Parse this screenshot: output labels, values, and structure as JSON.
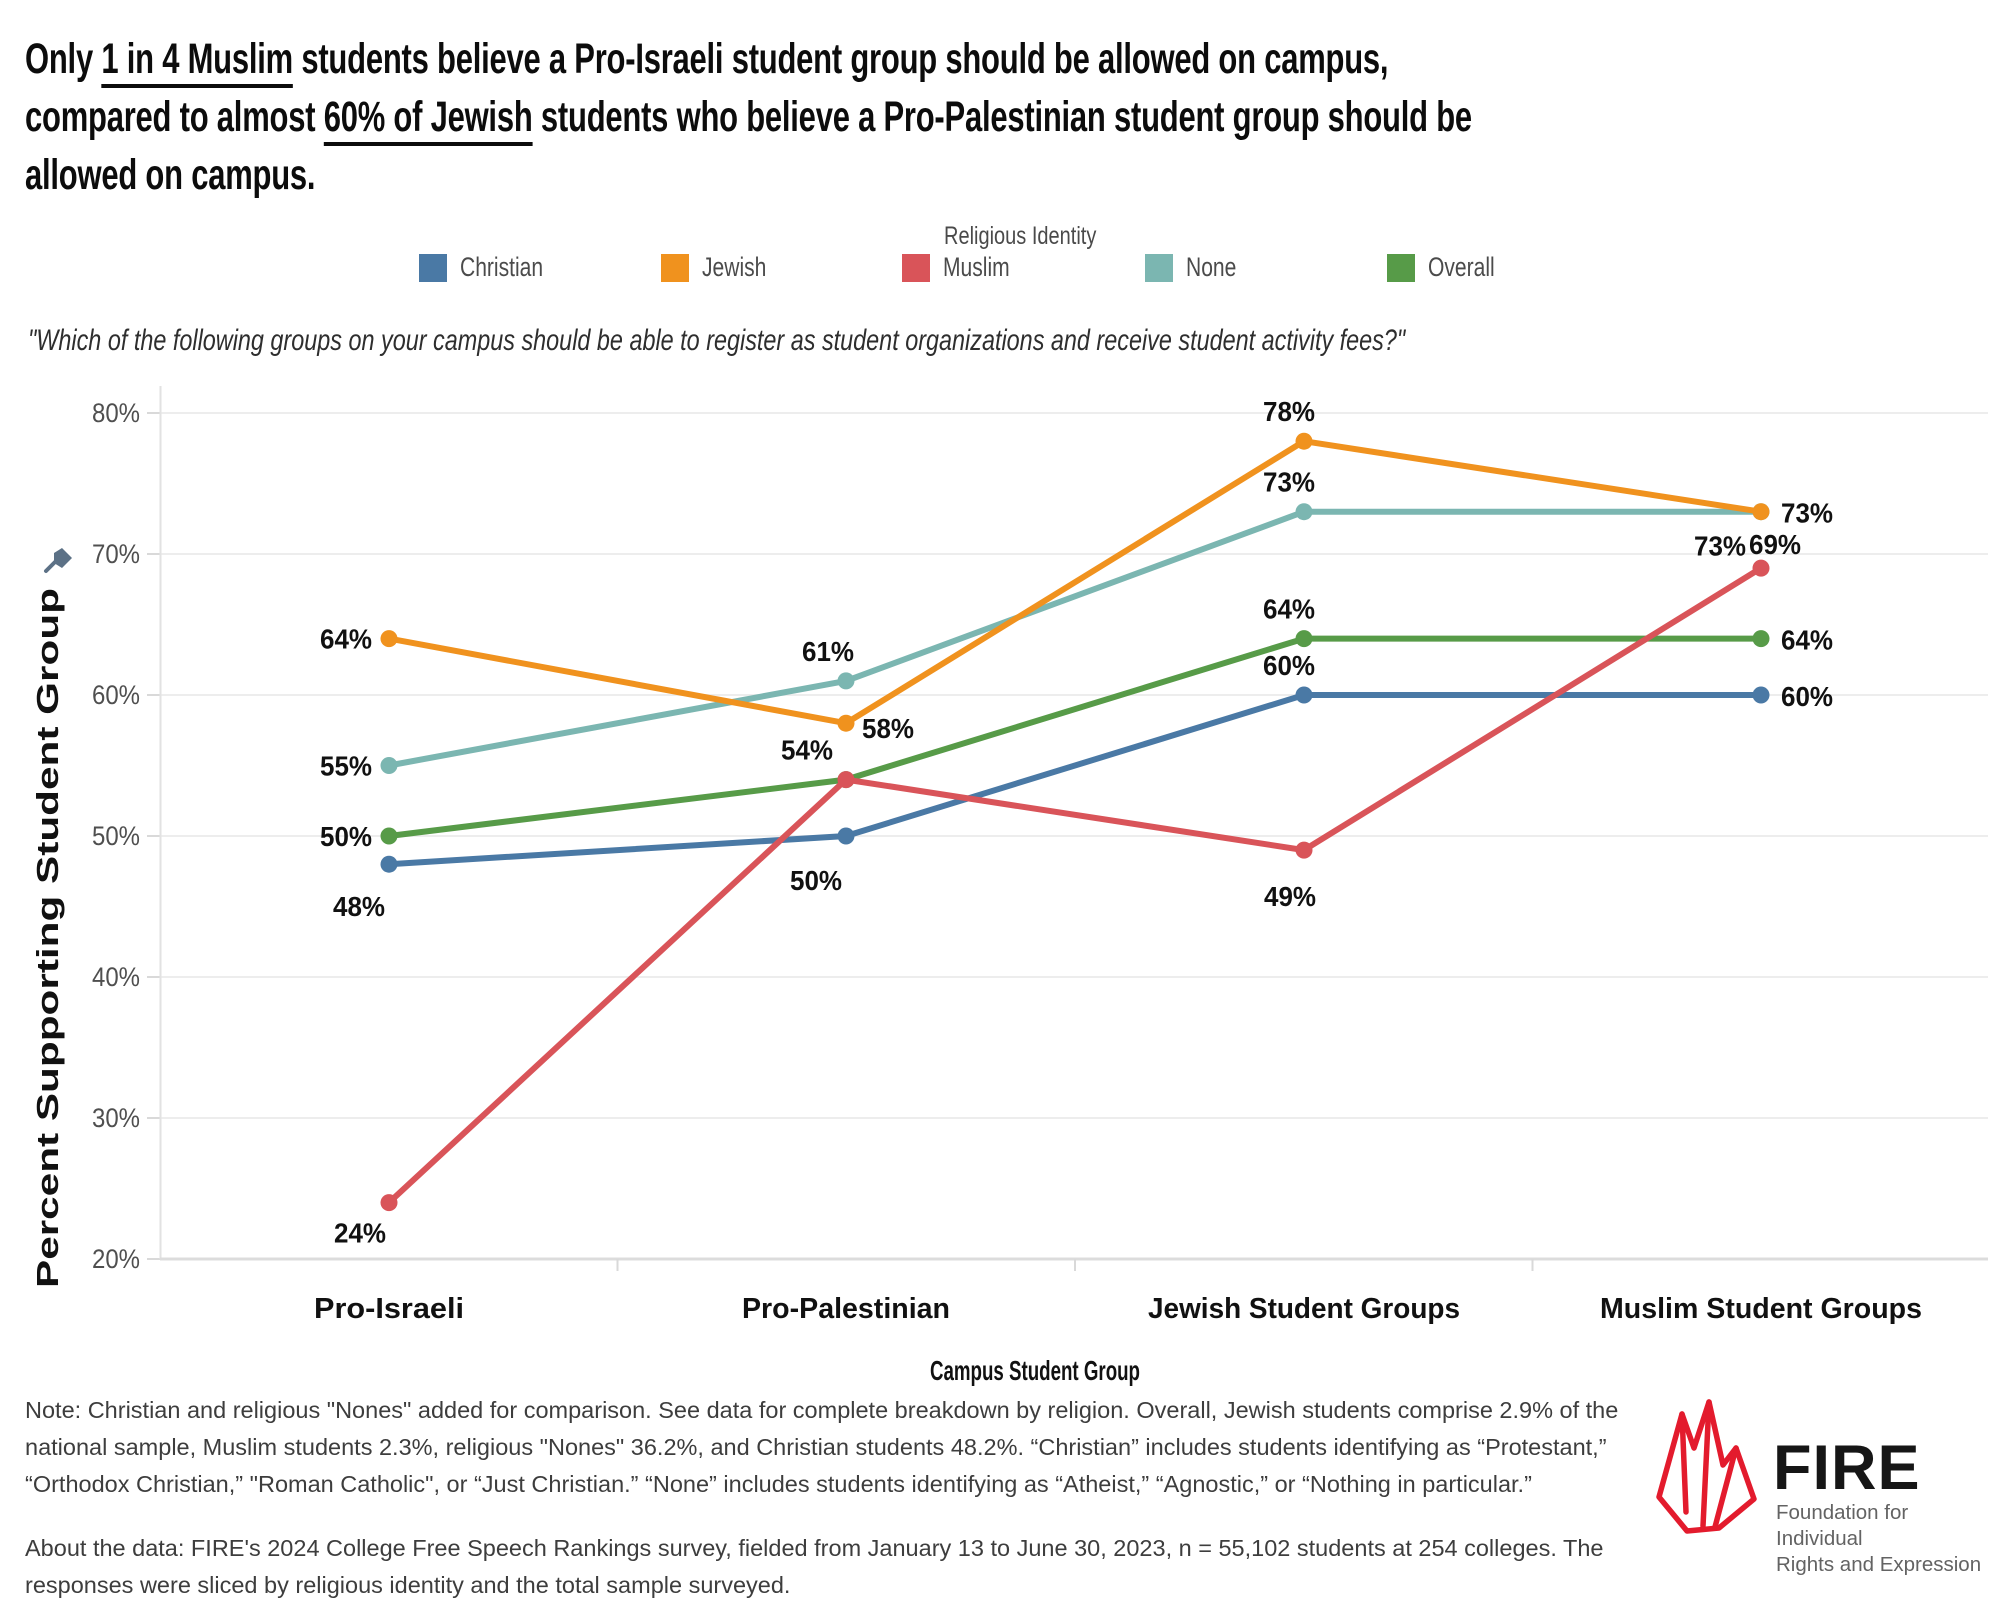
{
  "header": {
    "title_lines": [
      [
        {
          "text": "Only ",
          "underline": false
        },
        {
          "text": "1 in 4 Muslim",
          "underline": true
        },
        {
          "text": " students believe a Pro-Israeli student group should be allowed on campus,",
          "underline": false
        }
      ],
      [
        {
          "text": "compared to almost ",
          "underline": false
        },
        {
          "text": "60% of Jewish",
          "underline": true
        },
        {
          "text": " students who believe a Pro-Palestinian student group should be",
          "underline": false
        }
      ],
      [
        {
          "text": "allowed on campus.",
          "underline": false
        }
      ]
    ]
  },
  "legend": {
    "title": "Religious Identity",
    "items": [
      {
        "label": "Christian",
        "color": "#4a79a5"
      },
      {
        "label": "Jewish",
        "color": "#f0921e"
      },
      {
        "label": "Muslim",
        "color": "#d95459"
      },
      {
        "label": "None",
        "color": "#7bb6b1"
      },
      {
        "label": "Overall",
        "color": "#579b48"
      }
    ]
  },
  "survey_question": "\"Which of the following groups on your campus should be able to register as student organizations and receive student activity fees?\"",
  "chart_data": {
    "type": "line",
    "categories": [
      "Pro-Israeli",
      "Pro-Palestinian",
      "Jewish Student Groups",
      "Muslim Student Groups"
    ],
    "series": [
      {
        "name": "Christian",
        "color": "#4a79a5",
        "values": [
          48,
          50,
          60,
          60
        ]
      },
      {
        "name": "Jewish",
        "color": "#f0921e",
        "values": [
          64,
          58,
          78,
          73
        ]
      },
      {
        "name": "Muslim",
        "color": "#d95459",
        "values": [
          24,
          54,
          49,
          69
        ]
      },
      {
        "name": "None",
        "color": "#7bb6b1",
        "values": [
          55,
          61,
          73,
          73
        ]
      },
      {
        "name": "Overall",
        "color": "#579b48",
        "values": [
          50,
          54,
          64,
          64
        ]
      }
    ],
    "xlabel": "Campus Student Group",
    "ylabel": "Percent Supporting Student Group",
    "ylim": [
      20,
      80
    ],
    "ytick_values": [
      20,
      30,
      40,
      50,
      60,
      70,
      80
    ],
    "ytick_suffix": "%",
    "grid": true,
    "legend_title": "Religious Identity",
    "legend_position": "top",
    "data_label_suffix": "%",
    "hidden_labels": [
      {
        "series": "Overall",
        "category_index": 1
      }
    ]
  },
  "notes": {
    "note": "Note: Christian and religious \"Nones\" added for comparison. See data for complete breakdown by religion. Overall, Jewish students comprise 2.9% of the national sample, Muslim students 2.3%, religious \"Nones\" 36.2%, and Christian students 48.2%. “Christian” includes students identifying as “Protestant,” “Orthodox Christian,” \"Roman Catholic\", or “Just Christian.” “None” includes students identifying as “Atheist,” “Agnostic,” or “Nothing in particular.”",
    "about": "About the data: FIRE's 2024 College Free Speech Rankings survey, fielded from January 13 to June 30, 2023, n = 55,102 students at 254 colleges. The responses were sliced by religious identity and the total sample surveyed."
  },
  "logo": {
    "name": "FIRE",
    "tagline_line1": "Foundation for Individual",
    "tagline_line2": "Rights and Expression",
    "flame_color": "#e31b2d"
  }
}
